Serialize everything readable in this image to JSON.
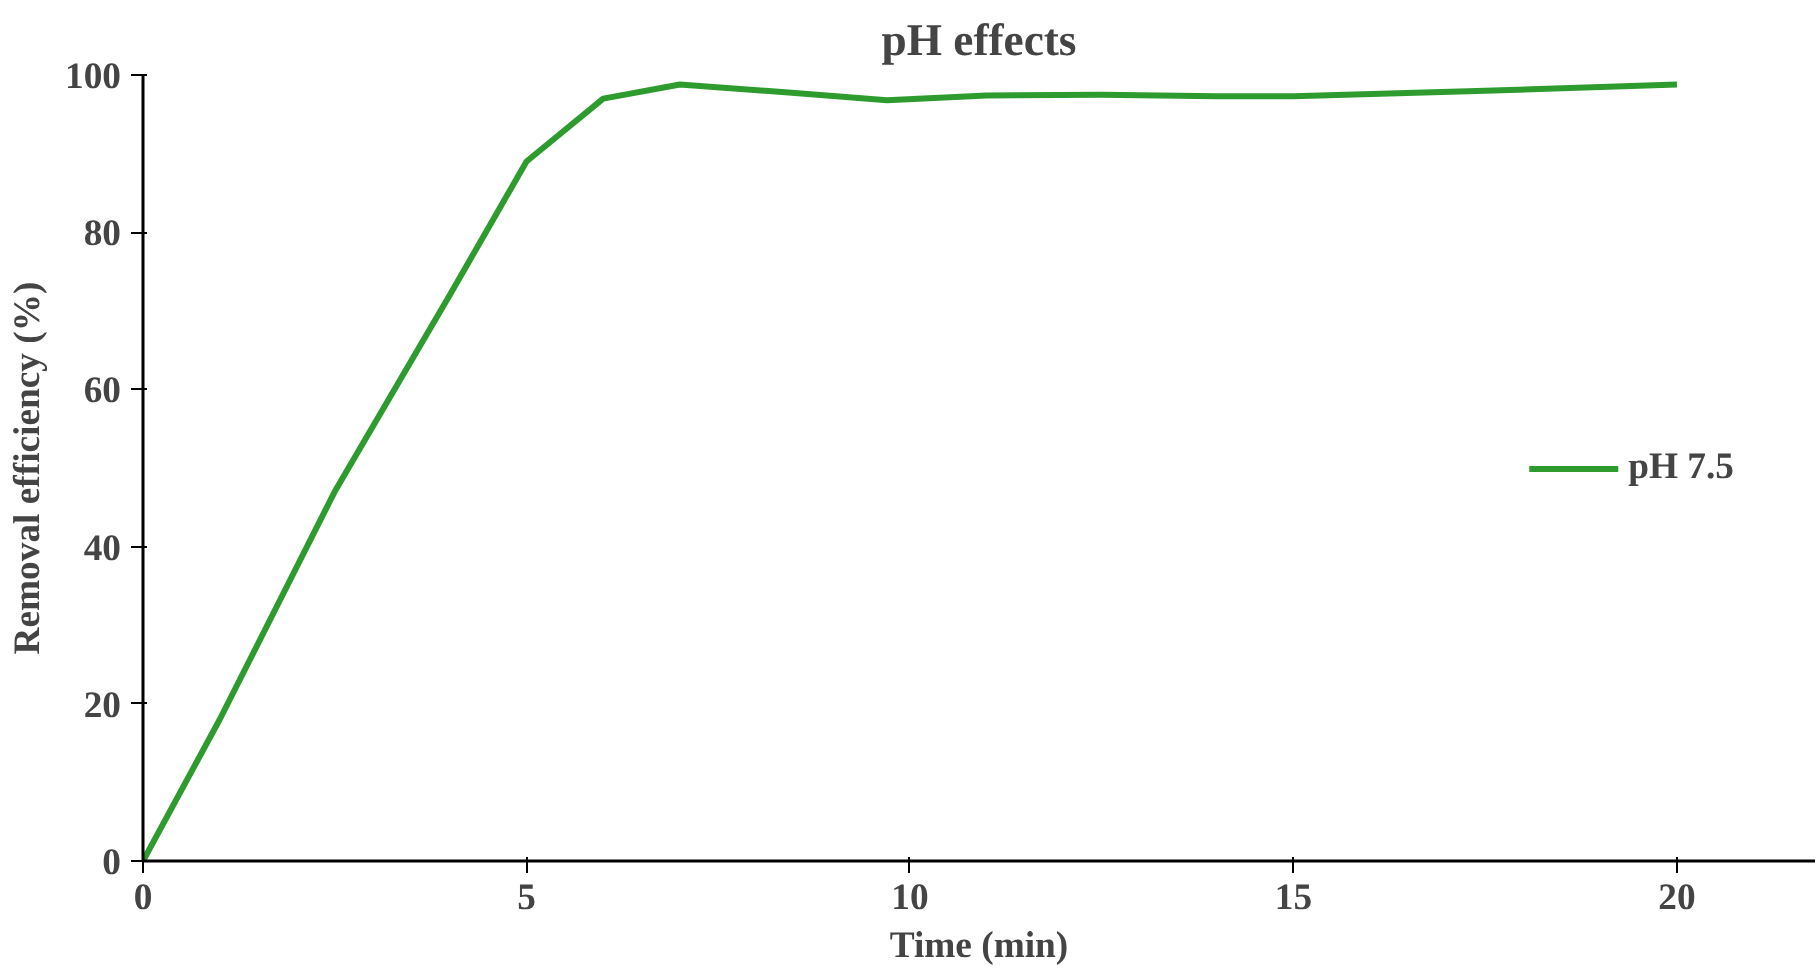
{
  "chart_data": {
    "type": "line",
    "title": "pH effects",
    "xlabel": "Time (min)",
    "ylabel": "Removal efficiency (%)",
    "x": [
      0,
      1,
      2.5,
      4,
      5,
      6,
      7,
      8.5,
      9.7,
      11,
      12.5,
      14,
      15,
      17.5,
      20
    ],
    "series": [
      {
        "name": "pH 7.5",
        "color": "#2e9b2e",
        "values": [
          0,
          18,
          47,
          72,
          89,
          97,
          98.8,
          97.7,
          96.8,
          97.4,
          97.5,
          97.3,
          97.3,
          98,
          98.8
        ]
      }
    ],
    "xlim": [
      0,
      21.8
    ],
    "ylim": [
      0,
      100
    ],
    "xticks": [
      0,
      5,
      10,
      15,
      20
    ],
    "yticks": [
      0,
      20,
      40,
      60,
      80,
      100
    ],
    "grid": false,
    "legend": "right",
    "marker": "none",
    "line_style": "solid"
  }
}
